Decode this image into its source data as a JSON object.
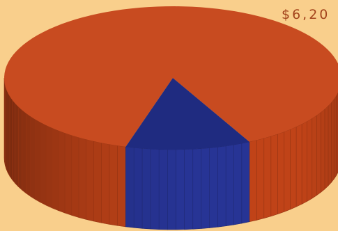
{
  "chart_data": {
    "type": "pie",
    "style": "3d",
    "slices": [
      {
        "value": 88,
        "color": "#c84b20",
        "side_color": "#b23e16"
      },
      {
        "value": 12,
        "color": "#1f2b80",
        "side_color": "#24308a"
      }
    ],
    "annotations": [
      "$6,20"
    ]
  }
}
